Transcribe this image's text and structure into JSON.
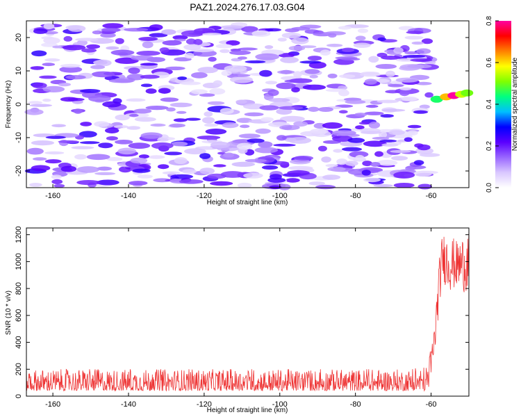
{
  "title": "PAZ1.2024.276.17.03.G04",
  "chart_data": [
    {
      "type": "heatmap",
      "xlabel": "Height of straight line (km)",
      "ylabel": "Frequency (Hz)",
      "xlim": [
        -167,
        -50
      ],
      "ylim": [
        -25,
        25
      ],
      "x_ticks": [
        -160,
        -140,
        -120,
        -100,
        -80,
        -60
      ],
      "x_tick_labels": [
        "-160",
        "-140",
        "-120",
        "-100",
        "-80",
        "-60"
      ],
      "y_ticks": [
        -20,
        -10,
        0,
        10,
        20
      ],
      "y_tick_labels": [
        "-20",
        "-10",
        "0",
        "10",
        "20"
      ],
      "colorbar": {
        "label": "Normalized spectral amplitude",
        "range": [
          0,
          0.8
        ],
        "ticks": [
          0.0,
          0.2,
          0.4,
          0.6,
          0.8
        ],
        "tick_labels": [
          "0.0",
          "0.2",
          "0.4",
          "0.6",
          "0.8"
        ],
        "colors": [
          "#ffffff",
          "#d9c7ff",
          "#9966ff",
          "#5a00ff",
          "#0000ff",
          "#00bfff",
          "#00ff80",
          "#80ff00",
          "#ffff00",
          "#ff8000",
          "#ff0000",
          "#ff00a0"
        ]
      },
      "noise": {
        "x_range": [
          -165,
          -60
        ],
        "y_range": [
          -25,
          24
        ],
        "amplitude_range": [
          0.0,
          0.22
        ]
      },
      "signal": [
        {
          "x": -58.5,
          "y": 1.5,
          "value": 0.45
        },
        {
          "x": -56.0,
          "y": 2.2,
          "value": 0.62
        },
        {
          "x": -54.0,
          "y": 2.6,
          "value": 0.8
        },
        {
          "x": -52.0,
          "y": 3.0,
          "value": 0.55
        },
        {
          "x": -50.5,
          "y": 3.4,
          "value": 0.5
        }
      ],
      "grid": false
    },
    {
      "type": "line",
      "xlabel": "Height of straight line (km)",
      "ylabel": "SNR (10 * v/v)",
      "xlim": [
        -167,
        -50
      ],
      "ylim": [
        0,
        1250
      ],
      "x_ticks": [
        -160,
        -140,
        -120,
        -100,
        -80,
        -60
      ],
      "x_tick_labels": [
        "-160",
        "-140",
        "-120",
        "-100",
        "-80",
        "-60"
      ],
      "y_ticks": [
        0,
        200,
        400,
        600,
        800,
        1000,
        1200
      ],
      "y_tick_labels": [
        "0",
        "200",
        "400",
        "600",
        "800",
        "1000",
        "1200"
      ],
      "color": "#ee3333",
      "envelope": [
        {
          "x": -167,
          "low": 40,
          "high": 200
        },
        {
          "x": -65,
          "low": 40,
          "high": 200
        },
        {
          "x": -61,
          "low": 40,
          "high": 230
        },
        {
          "x": -60,
          "low": 70,
          "high": 380
        },
        {
          "x": -59,
          "low": 300,
          "high": 560
        },
        {
          "x": -58,
          "low": 620,
          "high": 980
        },
        {
          "x": -57,
          "low": 850,
          "high": 1220
        },
        {
          "x": -55,
          "low": 780,
          "high": 1200
        },
        {
          "x": -53,
          "low": 800,
          "high": 1150
        },
        {
          "x": -50,
          "low": 750,
          "high": 1250
        }
      ],
      "grid": false
    }
  ]
}
